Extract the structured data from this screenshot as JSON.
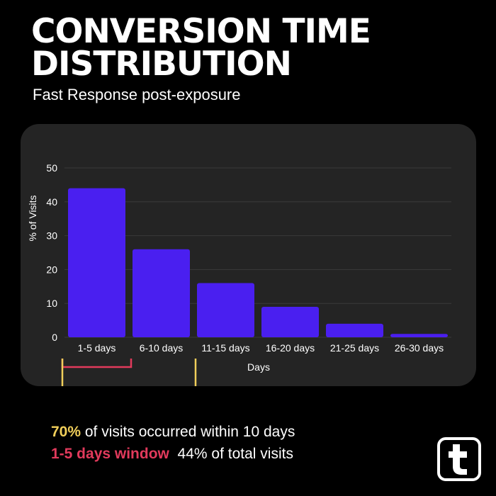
{
  "header": {
    "title_line1": "CONVERSION TIME",
    "title_line2": "DISTRIBUTION",
    "subtitle": "Fast Response post-exposure"
  },
  "chart_data": {
    "type": "bar",
    "categories": [
      "1-5 days",
      "6-10 days",
      "11-15 days",
      "16-20 days",
      "21-25 days",
      "26-30 days"
    ],
    "values": [
      44,
      26,
      16,
      9,
      4,
      1
    ],
    "xlabel": "Days",
    "ylabel": "% of Visits",
    "ylim": [
      0,
      50
    ],
    "yticks": [
      0,
      10,
      20,
      30,
      40,
      50
    ],
    "grid": true,
    "bar_color": "#4a1ff0",
    "grid_color": "#3a3a3a",
    "brackets": [
      {
        "from_category": 0,
        "to_category": 0,
        "color": "#e23a5c"
      },
      {
        "from_category": 0,
        "to_category": 1,
        "color": "#f1cf5a"
      }
    ]
  },
  "annotations": {
    "line1_highlight": "70%",
    "line1_text": " of visits occurred within 10 days",
    "line2_highlight": "1-5 days window",
    "line2_text": "44% of total visits"
  },
  "colors": {
    "background": "#000000",
    "card": "#242424",
    "accent_bar": "#4a1ff0",
    "highlight_yellow": "#f1cf5a",
    "highlight_red": "#e23a5c"
  },
  "logo": {
    "icon": "t-logo-icon"
  }
}
